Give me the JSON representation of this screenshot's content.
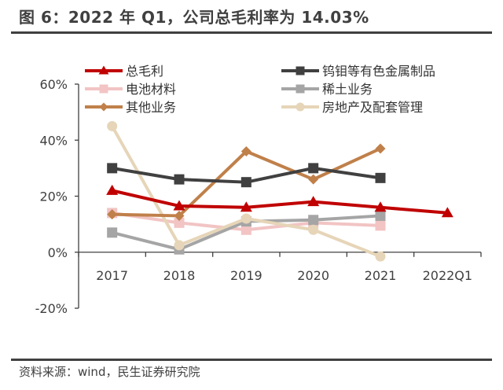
{
  "title": "图 6：2022 年 Q1，公司总毛利率为 14.03%",
  "source": "资料来源：wind，民生证券研究院",
  "chart_data": {
    "type": "line",
    "title": "图 6：2022 年 Q1，公司总毛利率为 14.03%",
    "xlabel": "",
    "ylabel": "",
    "categories": [
      "2017",
      "2018",
      "2019",
      "2020",
      "2021",
      "2022Q1"
    ],
    "ylim": [
      -20,
      60
    ],
    "yticks": [
      -20,
      0,
      20,
      40,
      60
    ],
    "ytick_labels": [
      "-20%",
      "0%",
      "20%",
      "40%",
      "60%"
    ],
    "grid": false,
    "legend_position": "top",
    "series": [
      {
        "name": "总毛利",
        "color": "#C00000",
        "marker": "triangle",
        "values": [
          22.0,
          16.5,
          16.0,
          18.0,
          16.0,
          14.03
        ]
      },
      {
        "name": "钨钼等有色金属制品",
        "color": "#404040",
        "marker": "square",
        "values": [
          30.0,
          26.0,
          25.0,
          30.0,
          26.5,
          null
        ]
      },
      {
        "name": "电池材料",
        "color": "#F2C4C4",
        "marker": "square",
        "values": [
          14.0,
          10.5,
          8.0,
          10.5,
          9.5,
          null
        ]
      },
      {
        "name": "稀土业务",
        "color": "#A5A5A5",
        "marker": "square",
        "values": [
          7.0,
          1.0,
          11.0,
          11.5,
          13.0,
          null
        ]
      },
      {
        "name": "其他业务",
        "color": "#C0804A",
        "marker": "diamond",
        "values": [
          13.5,
          13.0,
          36.0,
          26.0,
          37.0,
          null
        ]
      },
      {
        "name": "房地产及配套管理",
        "color": "#E6D5B8",
        "marker": "circle",
        "values": [
          45.0,
          2.5,
          12.0,
          8.0,
          -1.5,
          null
        ]
      }
    ]
  }
}
